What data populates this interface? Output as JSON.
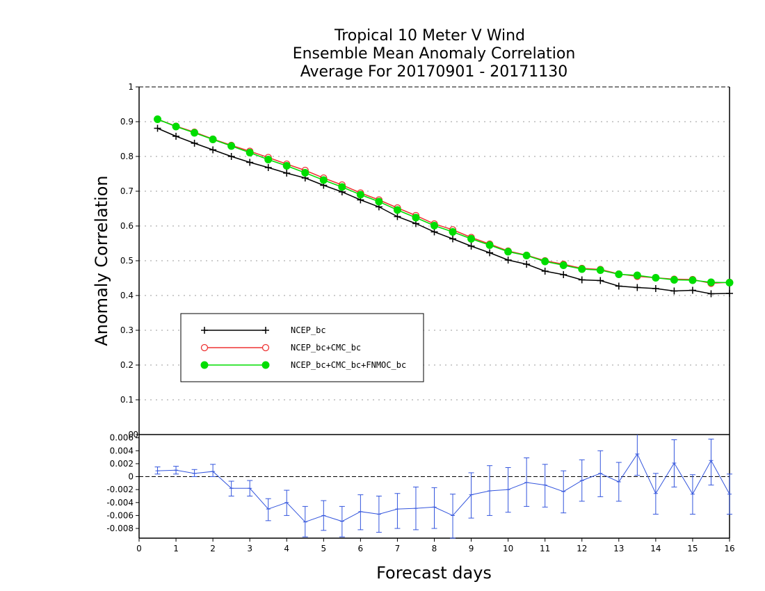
{
  "chart_data": [
    {
      "type": "line",
      "title": [
        "Tropical 10 Meter V Wind",
        "Ensemble Mean Anomaly Correlation",
        "Average For 20170901 - 20171130"
      ],
      "ylabel": "Anomaly Correlation",
      "ylim": [
        0,
        1
      ],
      "yticks": [
        "0",
        "0.1",
        "0.2",
        "0.3",
        "0.4",
        "0.5",
        "0.6",
        "0.7",
        "0.8",
        "0.9",
        "1"
      ],
      "grid": true,
      "legend_position": "lower-left",
      "x": [
        0.5,
        1,
        1.5,
        2,
        2.5,
        3,
        3.5,
        4,
        4.5,
        5,
        5.5,
        6,
        6.5,
        7,
        7.5,
        8,
        8.5,
        9,
        9.5,
        10,
        10.5,
        11,
        11.5,
        12,
        12.5,
        13,
        13.5,
        14,
        14.5,
        15,
        15.5,
        16
      ],
      "series": [
        {
          "name": "NCEP_bc",
          "color": "#000000",
          "marker": "plus",
          "values": [
            0.881,
            0.858,
            0.838,
            0.819,
            0.8,
            0.783,
            0.768,
            0.752,
            0.738,
            0.717,
            0.698,
            0.675,
            0.655,
            0.627,
            0.607,
            0.583,
            0.563,
            0.542,
            0.523,
            0.502,
            0.49,
            0.47,
            0.46,
            0.445,
            0.443,
            0.427,
            0.423,
            0.42,
            0.413,
            0.415,
            0.405,
            0.406
          ]
        },
        {
          "name": "NCEP_bc+CMC_bc",
          "color": "#ee3333",
          "marker": "open-circle",
          "values": [
            0.907,
            0.887,
            0.87,
            0.85,
            0.832,
            0.815,
            0.797,
            0.778,
            0.76,
            0.738,
            0.718,
            0.695,
            0.675,
            0.652,
            0.63,
            0.606,
            0.589,
            0.567,
            0.548,
            0.528,
            0.516,
            0.5,
            0.49,
            0.478,
            0.475,
            0.462,
            0.455,
            0.451,
            0.447,
            0.446,
            0.435,
            0.438
          ]
        },
        {
          "name": "NCEP_bc+CMC_bc+FNMOC_bc",
          "color": "#00dd00",
          "marker": "filled-circle",
          "values": [
            0.907,
            0.886,
            0.868,
            0.849,
            0.83,
            0.811,
            0.791,
            0.773,
            0.753,
            0.732,
            0.712,
            0.69,
            0.67,
            0.646,
            0.624,
            0.601,
            0.583,
            0.563,
            0.545,
            0.526,
            0.515,
            0.498,
            0.487,
            0.476,
            0.473,
            0.461,
            0.458,
            0.451,
            0.445,
            0.444,
            0.438,
            0.437
          ]
        }
      ]
    },
    {
      "type": "line",
      "xlabel": "Forecast days",
      "xlim": [
        0,
        16
      ],
      "xticks": [
        "0",
        "1",
        "2",
        "3",
        "4",
        "5",
        "6",
        "7",
        "8",
        "9",
        "10",
        "11",
        "12",
        "13",
        "14",
        "15",
        "16"
      ],
      "ylim": [
        -0.0095,
        0.0065
      ],
      "yticks": [
        "-0.008",
        "-0.006",
        "-0.004",
        "-0.002",
        "0",
        "0.002",
        "0.004",
        "0.006"
      ],
      "upper_axis_label": "0",
      "zero_line": "dashed",
      "color": "#3355dd",
      "x": [
        0.5,
        1,
        1.5,
        2,
        2.5,
        3,
        3.5,
        4,
        4.5,
        5,
        5.5,
        6,
        6.5,
        7,
        7.5,
        8,
        8.5,
        9,
        9.5,
        10,
        10.5,
        11,
        11.5,
        12,
        12.5,
        13,
        13.5,
        14,
        14.5,
        15,
        15.5,
        16
      ],
      "values": [
        0.0009,
        0.001,
        0.0005,
        0.0008,
        -0.0018,
        -0.0018,
        -0.005,
        -0.004,
        -0.007,
        -0.006,
        -0.0069,
        -0.0054,
        -0.0058,
        -0.005,
        -0.0049,
        -0.0047,
        -0.006,
        -0.0028,
        -0.0022,
        -0.002,
        -0.0009,
        -0.0013,
        -0.0023,
        -0.0006,
        0.0005,
        -0.0008,
        0.0035,
        -0.0026,
        0.0021,
        -0.0027,
        0.0025,
        -0.0027
      ],
      "error_low": [
        0.0004,
        0.0004,
        0.0,
        0.0,
        -0.003,
        -0.003,
        -0.0068,
        -0.006,
        -0.0093,
        -0.0083,
        -0.0093,
        -0.0082,
        -0.0086,
        -0.008,
        -0.0082,
        -0.008,
        -0.0095,
        -0.0064,
        -0.006,
        -0.0055,
        -0.0046,
        -0.0047,
        -0.0056,
        -0.0038,
        -0.0031,
        -0.0038,
        0.0002,
        -0.0058,
        -0.0016,
        -0.0058,
        -0.0013,
        -0.0058
      ],
      "error_high": [
        0.0015,
        0.0016,
        0.0011,
        0.0019,
        -0.0007,
        -0.0006,
        -0.0034,
        -0.0021,
        -0.0046,
        -0.0037,
        -0.0046,
        -0.0028,
        -0.003,
        -0.0026,
        -0.0016,
        -0.0017,
        -0.0027,
        0.0006,
        0.0017,
        0.0014,
        0.0029,
        0.0019,
        0.0009,
        0.0026,
        0.004,
        0.0022,
        0.0066,
        0.0005,
        0.0057,
        0.0003,
        0.0058,
        0.0004
      ]
    }
  ]
}
